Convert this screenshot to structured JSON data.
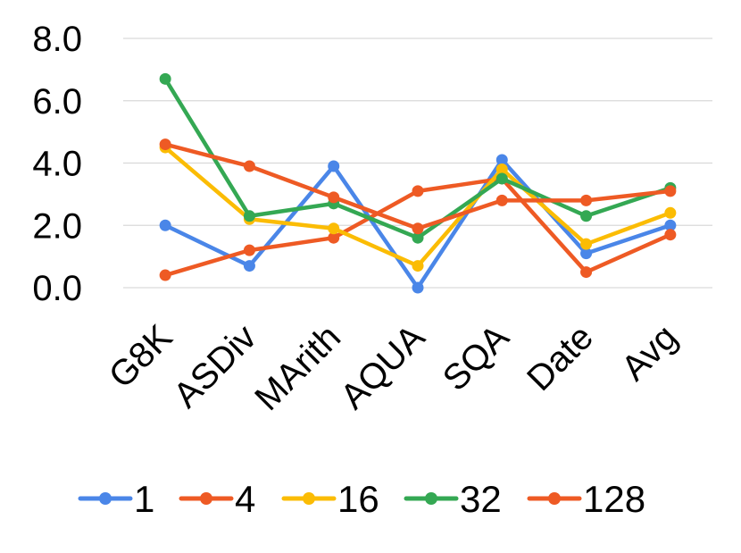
{
  "chart_data": {
    "type": "line",
    "categories": [
      "G8K",
      "ASDiv",
      "MArith",
      "AQUA",
      "SQA",
      "Date",
      "Avg"
    ],
    "ylim": [
      0,
      8
    ],
    "yticks": [
      "0.0",
      "2.0",
      "4.0",
      "6.0",
      "8.0"
    ],
    "grid": true,
    "legend_position": "bottom",
    "series": [
      {
        "name": "1",
        "color": "#4A86E8",
        "values": [
          2.0,
          0.7,
          3.9,
          0.0,
          4.1,
          1.1,
          2.0
        ]
      },
      {
        "name": "4",
        "color": "#EE5A24",
        "values": [
          0.4,
          1.2,
          1.6,
          3.1,
          3.5,
          0.5,
          1.7
        ]
      },
      {
        "name": "16",
        "color": "#FBBC04",
        "values": [
          4.5,
          2.2,
          1.9,
          0.7,
          3.8,
          1.4,
          2.4
        ]
      },
      {
        "name": "32",
        "color": "#34A853",
        "values": [
          6.7,
          2.3,
          2.7,
          1.6,
          3.5,
          2.3,
          3.2
        ]
      },
      {
        "name": "128",
        "color": "#EE5A24",
        "values": [
          4.6,
          3.9,
          2.9,
          1.9,
          2.8,
          2.8,
          3.1
        ]
      }
    ]
  }
}
